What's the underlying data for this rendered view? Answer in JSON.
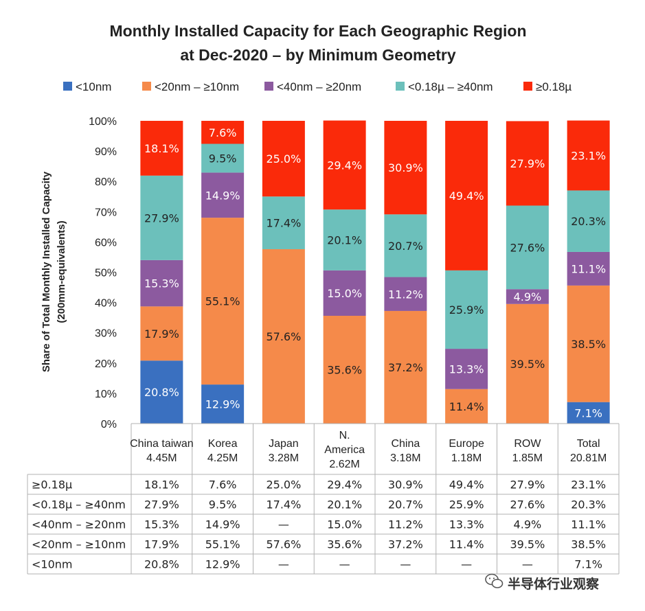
{
  "chart_data": {
    "type": "bar",
    "stacked": true,
    "title_line1": "Monthly Installed Capacity for Each Geographic Region",
    "title_line2": "at Dec-2020 – by Minimum Geometry",
    "ylabel_line1": "Share of Total Monthly Installed Capacity",
    "ylabel_line2": "(200mm-equivalents)",
    "ylim": [
      0,
      100
    ],
    "yticks": [
      "0%",
      "10%",
      "20%",
      "30%",
      "40%",
      "50%",
      "60%",
      "70%",
      "80%",
      "90%",
      "100%"
    ],
    "legend_position": "top",
    "categories": [
      {
        "name": "China taiwan",
        "name2": "",
        "capacity": "4.45M"
      },
      {
        "name": "Korea",
        "name2": "",
        "capacity": "4.25M"
      },
      {
        "name": "Japan",
        "name2": "",
        "capacity": "3.28M"
      },
      {
        "name": "N.",
        "name2": "America",
        "capacity": "2.62M"
      },
      {
        "name": "China",
        "name2": "",
        "capacity": "3.18M"
      },
      {
        "name": "Europe",
        "name2": "",
        "capacity": "1.18M"
      },
      {
        "name": "ROW",
        "name2": "",
        "capacity": "1.85M"
      },
      {
        "name": "Total",
        "name2": "",
        "capacity": "20.81M"
      }
    ],
    "series": [
      {
        "name": "<10nm",
        "color": "#3a70c0",
        "text_color": "#ffffff",
        "values": [
          20.8,
          12.9,
          0,
          0,
          0,
          0,
          0,
          7.1
        ],
        "table": [
          "20.8%",
          "12.9%",
          "—",
          "—",
          "—",
          "—",
          "—",
          "7.1%"
        ]
      },
      {
        "name": "<20nm – ≥10nm",
        "color": "#f58a4a",
        "text_color": "#222222",
        "values": [
          17.9,
          55.1,
          57.6,
          35.6,
          37.2,
          11.4,
          39.5,
          38.5
        ],
        "table": [
          "17.9%",
          "55.1%",
          "57.6%",
          "35.6%",
          "37.2%",
          "11.4%",
          "39.5%",
          "38.5%"
        ]
      },
      {
        "name": "<40nm – ≥20nm",
        "color": "#8c5a9f",
        "text_color": "#ffffff",
        "values": [
          15.3,
          14.9,
          0,
          15.0,
          11.2,
          13.3,
          4.9,
          11.1
        ],
        "table": [
          "15.3%",
          "14.9%",
          "—",
          "15.0%",
          "11.2%",
          "13.3%",
          "4.9%",
          "11.1%"
        ]
      },
      {
        "name": "<0.18µ – ≥40nm",
        "color": "#6cc0bb",
        "text_color": "#222222",
        "values": [
          27.9,
          9.5,
          17.4,
          20.1,
          20.7,
          25.9,
          27.6,
          20.3
        ],
        "table": [
          "27.9%",
          "9.5%",
          "17.4%",
          "20.1%",
          "20.7%",
          "25.9%",
          "27.6%",
          "20.3%"
        ]
      },
      {
        "name": "≥0.18µ",
        "color": "#fa2a0a",
        "text_color": "#ffffff",
        "values": [
          18.1,
          7.6,
          25.0,
          29.4,
          30.9,
          49.4,
          27.9,
          23.1
        ],
        "table": [
          "18.1%",
          "7.6%",
          "25.0%",
          "29.4%",
          "30.9%",
          "49.4%",
          "27.9%",
          "23.1%"
        ]
      }
    ],
    "table_row_order": [
      "≥0.18µ",
      "<0.18µ – ≥40nm",
      "<40nm – ≥20nm",
      "<20nm – ≥10nm",
      "<10nm"
    ]
  },
  "watermark": {
    "text": "半导体行业观察",
    "icon": "wechat-icon"
  }
}
